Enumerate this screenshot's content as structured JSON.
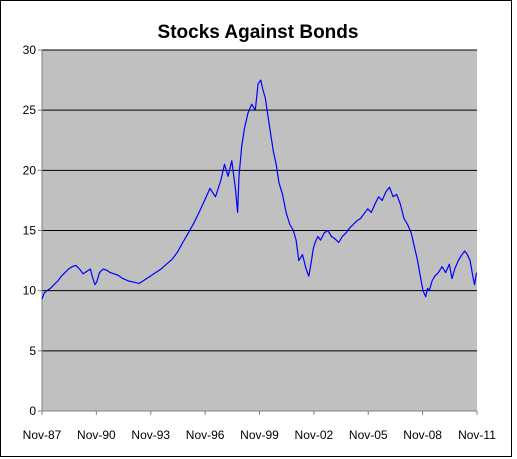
{
  "chart_data": {
    "type": "line",
    "title": "Stocks Against Bonds",
    "xlabel": "",
    "ylabel": "",
    "ylim": [
      0,
      30
    ],
    "yticks": [
      "0",
      "5",
      "10",
      "15",
      "20",
      "25",
      "30"
    ],
    "xlim": [
      1987.83,
      2011.83
    ],
    "xticks": [
      {
        "label": "Nov-87",
        "x": 1987.83
      },
      {
        "label": "Nov-90",
        "x": 1990.83
      },
      {
        "label": "Nov-93",
        "x": 1993.83
      },
      {
        "label": "Nov-96",
        "x": 1996.83
      },
      {
        "label": "Nov-99",
        "x": 1999.83
      },
      {
        "label": "Nov-02",
        "x": 2002.83
      },
      {
        "label": "Nov-05",
        "x": 2005.83
      },
      {
        "label": "Nov-08",
        "x": 2008.83
      },
      {
        "label": "Nov-11",
        "x": 2011.83
      }
    ],
    "grid": "horizontal",
    "legend": "none",
    "colors": {
      "plot_background": "#c0c0c0",
      "line": "#0000ff",
      "gridline": "#000000"
    },
    "series": [
      {
        "x": [
          1987.83,
          1987.95,
          1988.1,
          1988.3,
          1988.5,
          1988.7,
          1988.9,
          1989.1,
          1989.3,
          1989.5,
          1989.7,
          1989.9,
          1990.1,
          1990.3,
          1990.5,
          1990.6,
          1990.75,
          1990.85,
          1991.0,
          1991.2,
          1991.4,
          1991.6,
          1991.8,
          1992.0,
          1992.3,
          1992.6,
          1992.9,
          1993.2,
          1993.5,
          1993.8,
          1994.1,
          1994.4,
          1994.7,
          1995.0,
          1995.3,
          1995.6,
          1995.9,
          1996.2,
          1996.5,
          1996.8,
          1997.1,
          1997.4,
          1997.7,
          1997.9,
          1998.1,
          1998.3,
          1998.5,
          1998.62,
          1998.7,
          1998.85,
          1999.0,
          1999.2,
          1999.4,
          1999.6,
          1999.75,
          1999.9,
          2000.0,
          2000.15,
          2000.3,
          2000.45,
          2000.6,
          2000.75,
          2000.9,
          2001.1,
          2001.3,
          2001.5,
          2001.7,
          2001.85,
          2002.0,
          2002.2,
          2002.4,
          2002.55,
          2002.7,
          2002.8,
          2002.9,
          2003.05,
          2003.2,
          2003.4,
          2003.6,
          2003.8,
          2004.0,
          2004.2,
          2004.4,
          2004.6,
          2004.8,
          2005.0,
          2005.2,
          2005.4,
          2005.6,
          2005.8,
          2006.0,
          2006.2,
          2006.4,
          2006.6,
          2006.8,
          2007.0,
          2007.2,
          2007.4,
          2007.6,
          2007.8,
          2008.0,
          2008.2,
          2008.4,
          2008.55,
          2008.7,
          2008.85,
          2009.0,
          2009.1,
          2009.2,
          2009.35,
          2009.5,
          2009.7,
          2009.9,
          2010.1,
          2010.3,
          2010.45,
          2010.6,
          2010.8,
          2011.0,
          2011.15,
          2011.3,
          2011.45,
          2011.6,
          2011.7,
          2011.8
        ],
        "values": [
          9.3,
          9.8,
          10.0,
          10.2,
          10.5,
          10.8,
          11.2,
          11.5,
          11.8,
          12.0,
          12.1,
          11.8,
          11.4,
          11.6,
          11.8,
          11.2,
          10.5,
          10.7,
          11.5,
          11.8,
          11.7,
          11.5,
          11.4,
          11.3,
          11.0,
          10.8,
          10.7,
          10.6,
          10.9,
          11.2,
          11.5,
          11.8,
          12.2,
          12.6,
          13.2,
          14.0,
          14.8,
          15.6,
          16.5,
          17.5,
          18.5,
          17.8,
          19.2,
          20.5,
          19.5,
          20.8,
          18.5,
          16.5,
          19.5,
          22.0,
          23.5,
          24.8,
          25.5,
          25.0,
          27.2,
          27.5,
          26.8,
          26.0,
          24.5,
          23.0,
          21.5,
          20.5,
          19.0,
          18.0,
          16.5,
          15.5,
          15.0,
          14.2,
          12.5,
          13.0,
          11.8,
          11.2,
          12.5,
          13.5,
          14.0,
          14.5,
          14.2,
          14.8,
          15.0,
          14.5,
          14.3,
          14.0,
          14.5,
          14.8,
          15.2,
          15.5,
          15.8,
          16.0,
          16.4,
          16.8,
          16.5,
          17.2,
          17.8,
          17.5,
          18.2,
          18.6,
          17.8,
          18.0,
          17.2,
          16.0,
          15.5,
          14.8,
          13.5,
          12.5,
          11.2,
          10.0,
          9.5,
          10.2,
          10.0,
          10.8,
          11.2,
          11.5,
          12.0,
          11.5,
          12.2,
          11.0,
          11.8,
          12.5,
          13.0,
          13.3,
          13.0,
          12.5,
          11.2,
          10.5,
          11.5
        ]
      }
    ]
  }
}
